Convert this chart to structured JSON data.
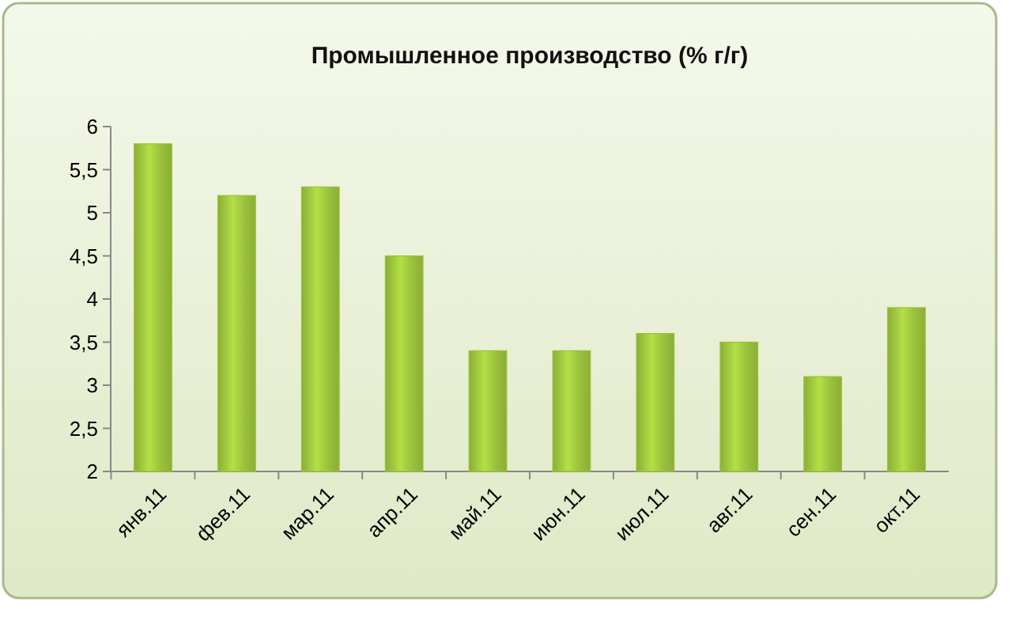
{
  "chart_data": {
    "type": "bar",
    "title": "Промышленное производство (% г/г)",
    "categories": [
      "янв.11",
      "фев.11",
      "мар.11",
      "апр.11",
      "май.11",
      "июн.11",
      "июл.11",
      "авг.11",
      "сен.11",
      "окт.11"
    ],
    "values": [
      5.8,
      5.2,
      5.3,
      4.5,
      3.4,
      3.4,
      3.6,
      3.5,
      3.1,
      3.9
    ],
    "color": "#9bc23c",
    "ylim": [
      2,
      6
    ],
    "yticks": [
      2,
      {
        "value": 2.5,
        "label": "2,5"
      },
      3,
      {
        "value": 3.5,
        "label": "3,5"
      },
      4,
      {
        "value": 4.5,
        "label": "4,5"
      },
      5,
      {
        "value": 5.5,
        "label": "5,5"
      },
      6
    ],
    "grid": false
  }
}
